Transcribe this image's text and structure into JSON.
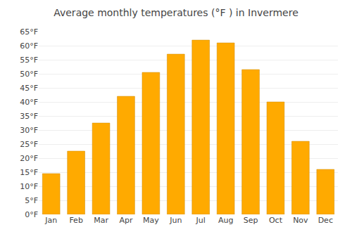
{
  "chart_data": {
    "type": "bar",
    "title": "Average monthly temperatures (°F ) in Invermere",
    "categories": [
      "Jan",
      "Feb",
      "Mar",
      "Apr",
      "May",
      "Jun",
      "Jul",
      "Aug",
      "Sep",
      "Oct",
      "Nov",
      "Dec"
    ],
    "values": [
      14.5,
      22.5,
      32.5,
      42.0,
      50.5,
      57.0,
      62.0,
      61.0,
      51.5,
      40.0,
      26.0,
      16.0
    ],
    "color": "#FFAA00",
    "ylim": [
      0,
      65
    ],
    "yticks": [
      {
        "value": 0,
        "label": "0°F"
      },
      {
        "value": 5,
        "label": "5°F"
      },
      {
        "value": 10,
        "label": "10°F"
      },
      {
        "value": 15,
        "label": "15°F"
      },
      {
        "value": 20,
        "label": "20°F"
      },
      {
        "value": 25,
        "label": "25°F"
      },
      {
        "value": 30,
        "label": "30°F"
      },
      {
        "value": 35,
        "label": "35°F"
      },
      {
        "value": 40,
        "label": "40°F"
      },
      {
        "value": 45,
        "label": "45°F"
      },
      {
        "value": 50,
        "label": "50°F"
      },
      {
        "value": 55,
        "label": "55°F"
      },
      {
        "value": 60,
        "label": "60°F"
      },
      {
        "value": 65,
        "label": "65°F"
      }
    ],
    "grid": true
  }
}
